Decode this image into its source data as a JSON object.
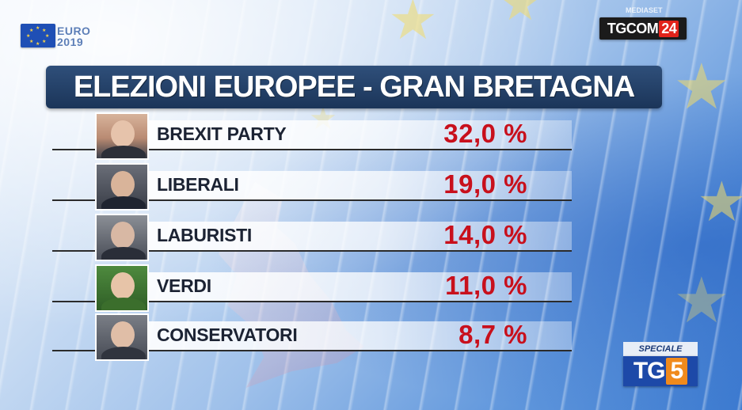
{
  "branding": {
    "euro_logo_text": "EURO\n2019",
    "euro_line1": "EURO",
    "euro_line2": "2019",
    "mediaset_label": "MEDIASET",
    "tgcom_text": "TGCOM",
    "tgcom_num": "24",
    "tg5_special": "SPECIALE",
    "tg5_text": "TG",
    "tg5_num": "5"
  },
  "title": "ELEZIONI EUROPEE - GRAN BRETAGNA",
  "results": [
    {
      "party": "BREXIT PARTY",
      "percent": "32,0 %"
    },
    {
      "party": "LIBERALI",
      "percent": "19,0 %"
    },
    {
      "party": "LABURISTI",
      "percent": "14,0 %"
    },
    {
      "party": "VERDI",
      "percent": "11,0 %"
    },
    {
      "party": "CONSERVATORI",
      "percent": "8,7 %"
    }
  ],
  "colors": {
    "title_bg": "#1b3559",
    "percent_red": "#c8101c",
    "party_text": "#1c2333",
    "tg5_blue": "#1d49a8",
    "tg5_orange": "#f08a1c"
  },
  "icons": [
    "eu-flag-icon",
    "party-leader-photo"
  ]
}
